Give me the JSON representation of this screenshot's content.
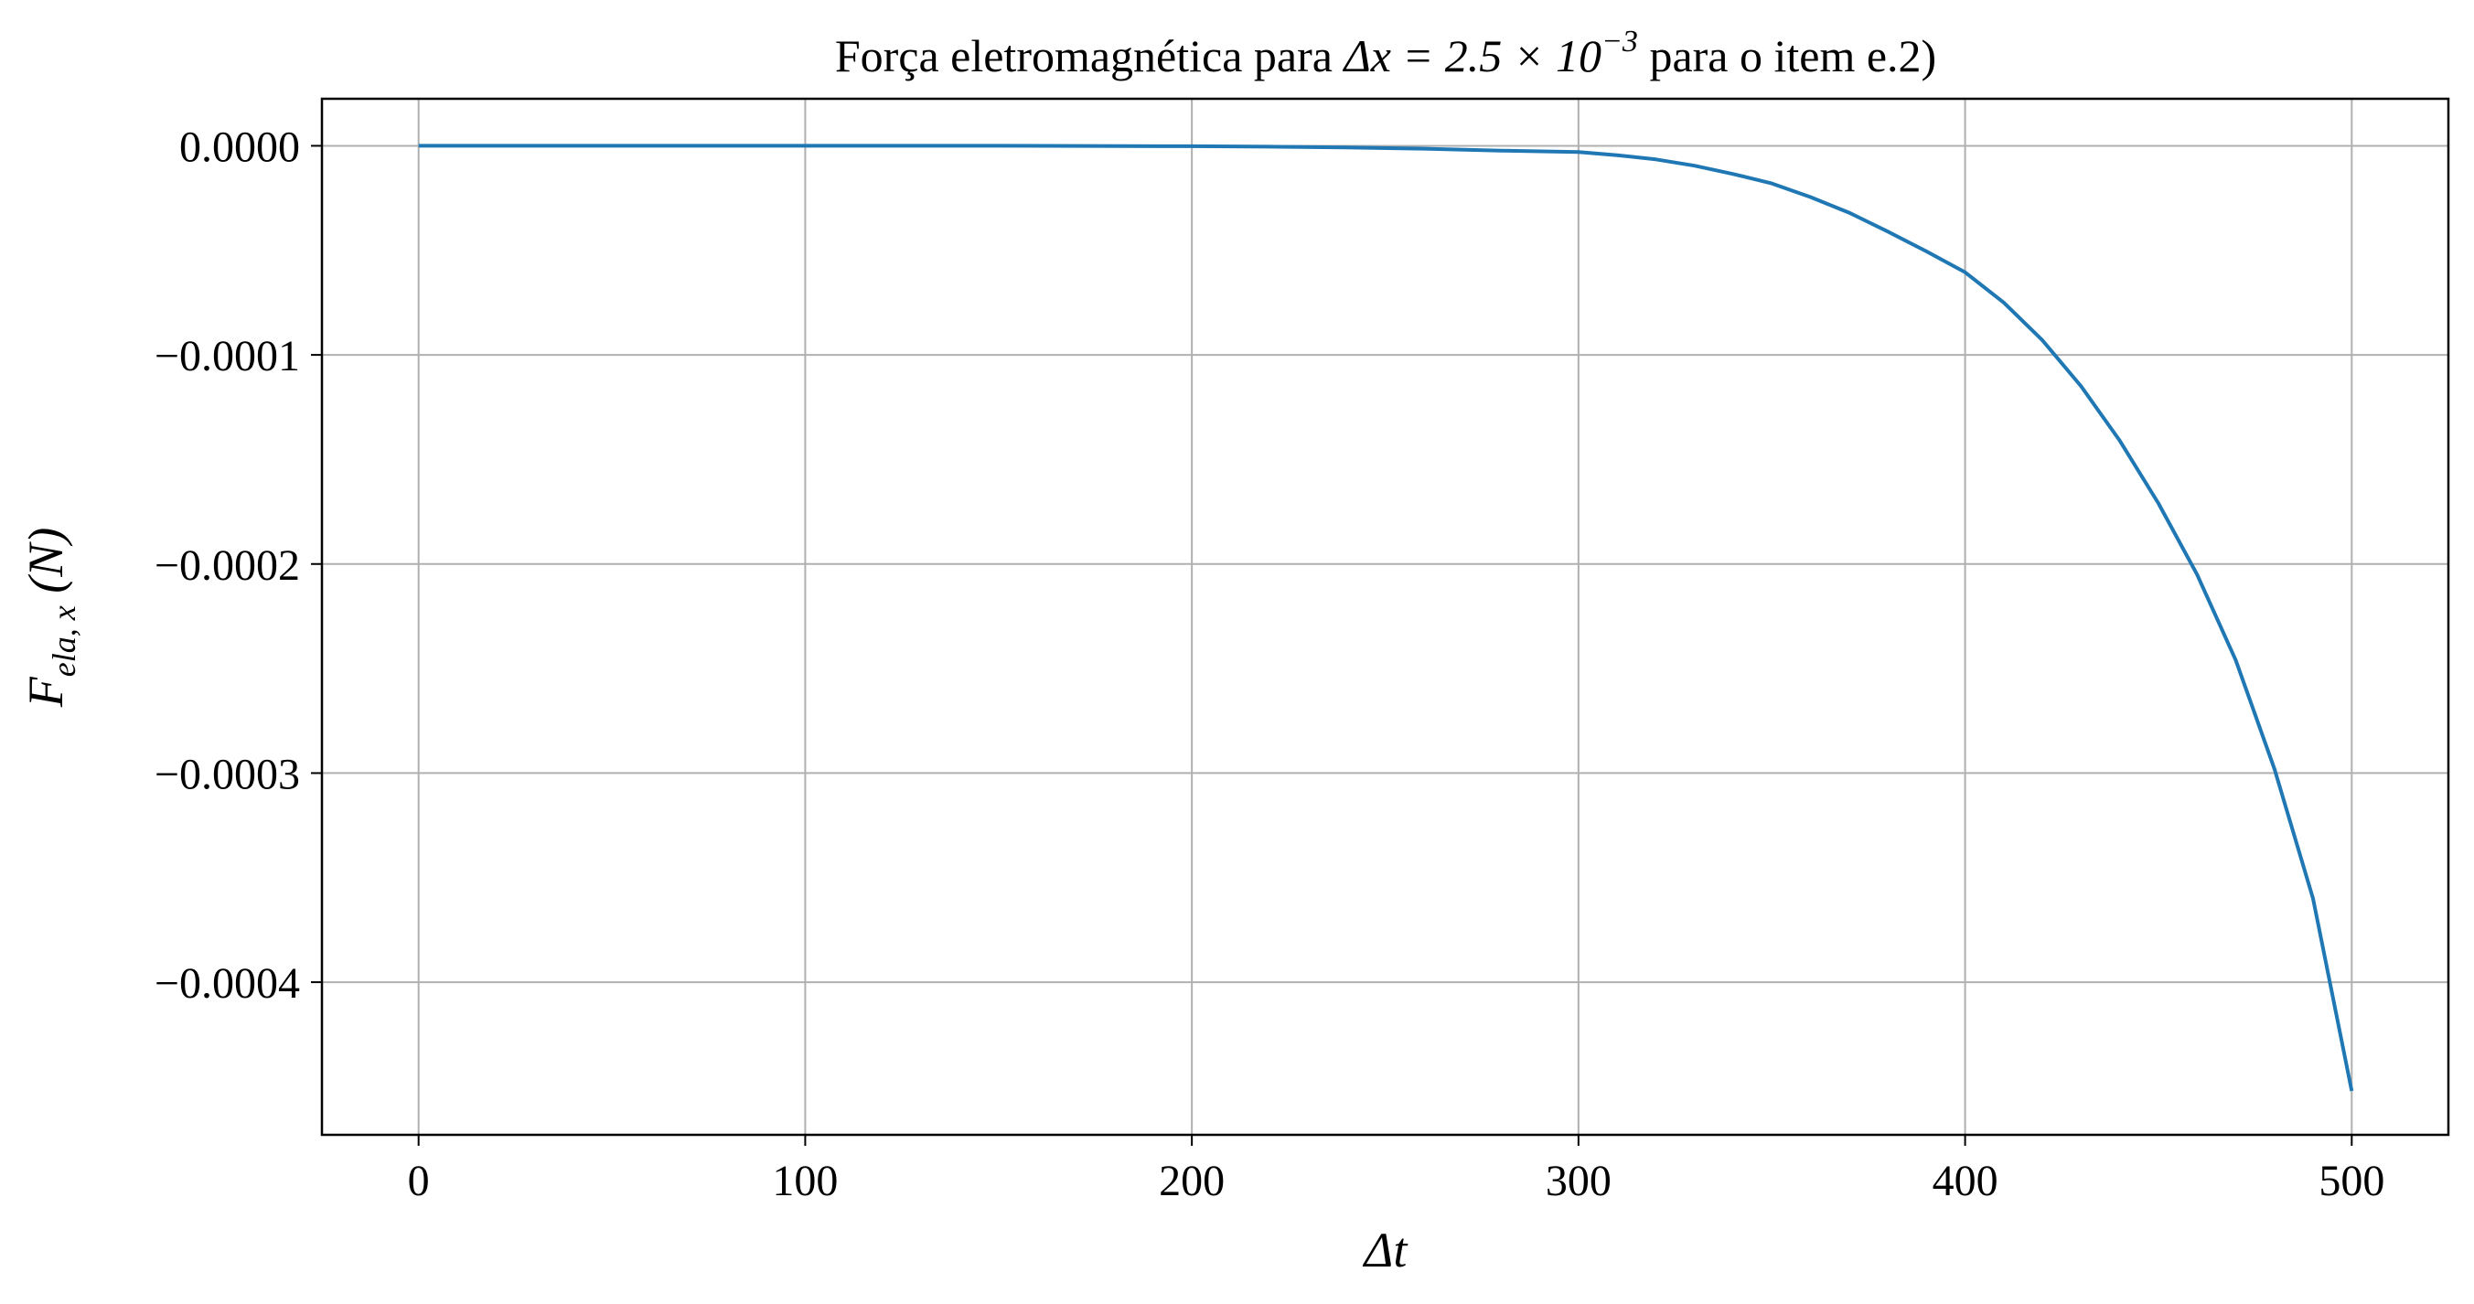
{
  "chart_data": {
    "type": "line",
    "title": {
      "prefix": "Força eletromagnética para ",
      "math": "Δx = 2.5 × 10",
      "exponent": "−3",
      "suffix": " para o item e.2)"
    },
    "xlabel": {
      "text": "Δt"
    },
    "ylabel": {
      "main": "F",
      "subscript": "ela, x",
      "unit": " (N)"
    },
    "xlim": [
      -25,
      525
    ],
    "ylim": [
      -0.000473,
      2.25e-05
    ],
    "x_ticks": [
      {
        "value": 0,
        "label": "0"
      },
      {
        "value": 100,
        "label": "100"
      },
      {
        "value": 200,
        "label": "200"
      },
      {
        "value": 300,
        "label": "300"
      },
      {
        "value": 400,
        "label": "400"
      },
      {
        "value": 500,
        "label": "500"
      }
    ],
    "y_ticks": [
      {
        "value": 0,
        "label": "0.0000"
      },
      {
        "value": -0.0001,
        "label": "−0.0001"
      },
      {
        "value": -0.0002,
        "label": "−0.0002"
      },
      {
        "value": -0.0003,
        "label": "−0.0003"
      },
      {
        "value": -0.0004,
        "label": "−0.0004"
      }
    ],
    "grid": true,
    "series": [
      {
        "color": "#1f77b4",
        "x": [
          0,
          50,
          100,
          150,
          200,
          220,
          240,
          260,
          280,
          300,
          310,
          320,
          330,
          340,
          350,
          360,
          370,
          380,
          390,
          400,
          410,
          420,
          430,
          440,
          450,
          460,
          470,
          480,
          490,
          500
        ],
        "y": [
          0,
          0,
          0,
          0,
          -2e-07,
          -4e-07,
          -8e-07,
          -1.4e-06,
          -2.3e-06,
          -3e-06,
          -4.5e-06,
          -6.5e-06,
          -9.5e-06,
          -1.35e-05,
          -1.8e-05,
          -2.45e-05,
          -3.2e-05,
          -4.1e-05,
          -5.05e-05,
          -6.05e-05,
          -7.5e-05,
          -9.3e-05,
          -0.000115,
          -0.000141,
          -0.000171,
          -0.000205,
          -0.000246,
          -0.000298,
          -0.00036,
          -0.000452
        ]
      }
    ]
  }
}
